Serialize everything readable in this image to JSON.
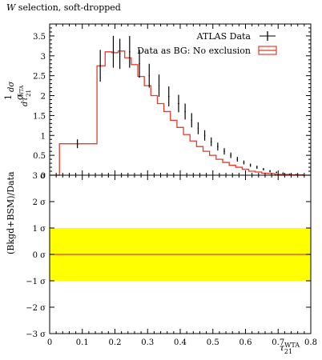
{
  "header": {
    "title_italic": "W",
    "title_rest": " selection, soft-dropped"
  },
  "legend": {
    "items": [
      {
        "label": "ATLAS Data",
        "color": "#000000",
        "style": "errorbar"
      },
      {
        "label": "Data as BG: No exclusion",
        "color": "#e8392a",
        "style": "line-box"
      }
    ]
  },
  "axes": {
    "top_ylabel_frac_top": "1",
    "top_ylabel_frac_bottom": "σ",
    "top_ylabel_d": "dσ",
    "top_ylabel_dvar": "dτ",
    "top_ylabel_sub": "21",
    "top_ylabel_sup": "WTA",
    "bottom_ylabel": "(Bkgd+BSM)/Data",
    "xlabel_base": "τ",
    "xlabel_sub": "21",
    "xlabel_sup": "WTA"
  },
  "chart_data": [
    {
      "type": "line",
      "panel": "main",
      "title": "W selection, soft-dropped",
      "xlim": [
        0,
        0.8
      ],
      "ylim": [
        0,
        3.8
      ],
      "yticks": [
        0,
        0.5,
        1,
        1.5,
        2,
        2.5,
        3,
        3.5
      ],
      "ytick_labels": [
        "0",
        "0.5",
        "1",
        "1.5",
        "2",
        "2.5",
        "3",
        "3.5"
      ],
      "series": [
        {
          "name": "ATLAS Data",
          "points": [
            {
              "x": 0.085,
              "y": 0.79,
              "yerr": 0.11,
              "xerr": 0.0
            },
            {
              "x": 0.155,
              "y": 2.75,
              "yerr": 0.4,
              "xerr": 0.0
            },
            {
              "x": 0.195,
              "y": 3.1,
              "yerr": 0.4,
              "xerr": 0.0
            },
            {
              "x": 0.215,
              "y": 3.05,
              "yerr": 0.38,
              "xerr": 0.0
            },
            {
              "x": 0.245,
              "y": 3.1,
              "yerr": 0.4,
              "xerr": 0.0
            },
            {
              "x": 0.275,
              "y": 2.8,
              "yerr": 0.35,
              "xerr": 0.0
            },
            {
              "x": 0.305,
              "y": 2.5,
              "yerr": 0.3,
              "xerr": 0.0
            },
            {
              "x": 0.335,
              "y": 2.25,
              "yerr": 0.28,
              "xerr": 0.0
            },
            {
              "x": 0.365,
              "y": 1.98,
              "yerr": 0.25,
              "xerr": 0.0
            },
            {
              "x": 0.395,
              "y": 1.8,
              "yerr": 0.22,
              "xerr": 0.0
            },
            {
              "x": 0.415,
              "y": 1.6,
              "yerr": 0.2,
              "xerr": 0.0
            },
            {
              "x": 0.435,
              "y": 1.38,
              "yerr": 0.18,
              "xerr": 0.0
            },
            {
              "x": 0.455,
              "y": 1.18,
              "yerr": 0.15,
              "xerr": 0.0
            },
            {
              "x": 0.475,
              "y": 1.0,
              "yerr": 0.13,
              "xerr": 0.0
            },
            {
              "x": 0.495,
              "y": 0.84,
              "yerr": 0.11,
              "xerr": 0.0
            },
            {
              "x": 0.515,
              "y": 0.72,
              "yerr": 0.1,
              "xerr": 0.0
            },
            {
              "x": 0.535,
              "y": 0.6,
              "yerr": 0.08,
              "xerr": 0.0
            },
            {
              "x": 0.555,
              "y": 0.5,
              "yerr": 0.07,
              "xerr": 0.0
            },
            {
              "x": 0.575,
              "y": 0.4,
              "yerr": 0.06,
              "xerr": 0.0
            },
            {
              "x": 0.595,
              "y": 0.32,
              "yerr": 0.05,
              "xerr": 0.0
            },
            {
              "x": 0.615,
              "y": 0.25,
              "yerr": 0.04,
              "xerr": 0.0
            },
            {
              "x": 0.635,
              "y": 0.2,
              "yerr": 0.04,
              "xerr": 0.0
            },
            {
              "x": 0.655,
              "y": 0.15,
              "yerr": 0.03,
              "xerr": 0.0
            },
            {
              "x": 0.675,
              "y": 0.1,
              "yerr": 0.03,
              "xerr": 0.0
            },
            {
              "x": 0.695,
              "y": 0.07,
              "yerr": 0.02,
              "xerr": 0.0
            },
            {
              "x": 0.715,
              "y": 0.05,
              "yerr": 0.02,
              "xerr": 0.0
            },
            {
              "x": 0.735,
              "y": 0.03,
              "yerr": 0.01,
              "xerr": 0.0
            },
            {
              "x": 0.755,
              "y": 0.02,
              "yerr": 0.01,
              "xerr": 0.0
            },
            {
              "x": 0.775,
              "y": 0.01,
              "yerr": 0.01,
              "xerr": 0.0
            }
          ]
        },
        {
          "name": "Data as BG: No exclusion",
          "histogram": true,
          "edges": [
            0,
            0.03,
            0.145,
            0.17,
            0.19,
            0.21,
            0.23,
            0.25,
            0.27,
            0.29,
            0.31,
            0.33,
            0.35,
            0.37,
            0.39,
            0.41,
            0.43,
            0.45,
            0.47,
            0.49,
            0.51,
            0.53,
            0.55,
            0.57,
            0.59,
            0.61,
            0.63,
            0.65,
            0.67,
            0.69,
            0.71,
            0.73,
            0.75,
            0.77,
            0.8
          ],
          "values": [
            0.0,
            0.79,
            2.75,
            3.1,
            3.08,
            3.12,
            2.95,
            2.78,
            2.48,
            2.25,
            2.0,
            1.8,
            1.6,
            1.38,
            1.2,
            1.02,
            0.86,
            0.72,
            0.6,
            0.5,
            0.4,
            0.32,
            0.25,
            0.2,
            0.15,
            0.1,
            0.08,
            0.05,
            0.04,
            0.02,
            0.02,
            0.01,
            0.01,
            0.0
          ]
        }
      ]
    },
    {
      "type": "line",
      "panel": "ratio",
      "ylabel": "(Bkgd+BSM)/Data",
      "xlim": [
        0,
        0.8
      ],
      "ylim": [
        -3,
        3
      ],
      "yticks": [
        -3,
        -2,
        -1,
        0,
        1,
        2,
        3
      ],
      "ytick_labels": [
        "−3 σ",
        "−2 σ",
        "−1 σ",
        "0 σ",
        "1 σ",
        "2 σ",
        "3 σ"
      ],
      "xticks": [
        0,
        0.1,
        0.2,
        0.3,
        0.4,
        0.5,
        0.6,
        0.7,
        0.8
      ],
      "xtick_labels": [
        "0",
        "0.1",
        "0.2",
        "0.3",
        "0.4",
        "0.5",
        "0.6",
        "0.7",
        "0.8"
      ],
      "band": {
        "low": -1,
        "high": 1,
        "color": "#ffff00"
      },
      "series": [
        {
          "name": "Data as BG: No exclusion",
          "x": [
            0,
            0.8
          ],
          "y": [
            0,
            0
          ]
        }
      ]
    }
  ],
  "colors": {
    "data": "#000000",
    "mc": "#e8392a",
    "band": "#ffff00"
  }
}
